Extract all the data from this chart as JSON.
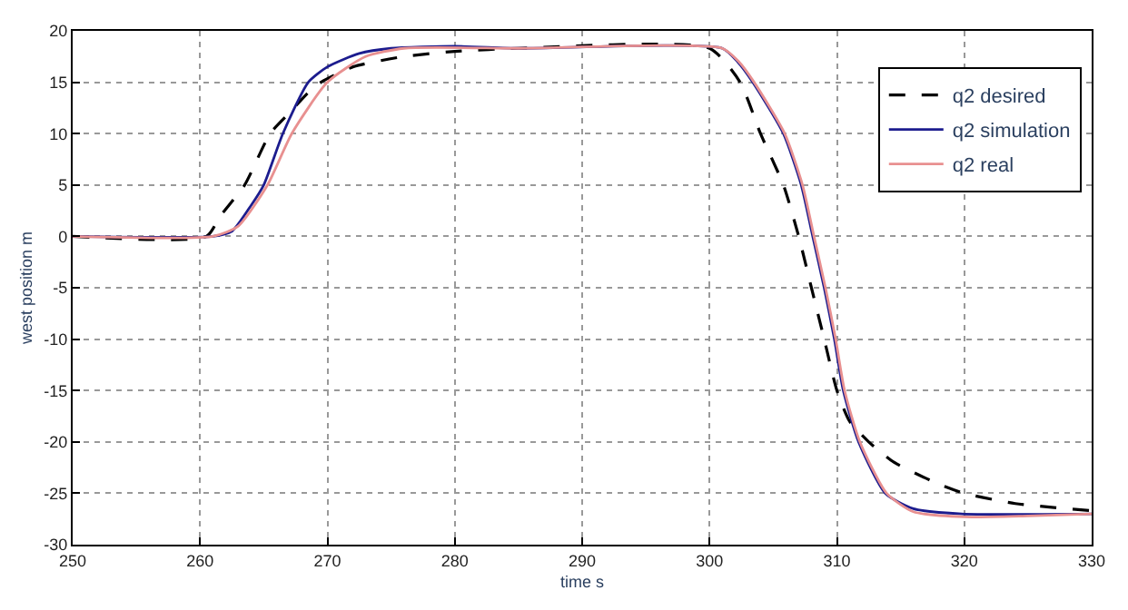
{
  "chart_data": {
    "type": "line",
    "xlabel": "time s",
    "ylabel": "west position m",
    "xlim": [
      250,
      330
    ],
    "ylim": [
      -30,
      20
    ],
    "xticks": [
      250,
      260,
      270,
      280,
      290,
      300,
      310,
      320,
      330
    ],
    "yticks": [
      -30,
      -25,
      -20,
      -15,
      -10,
      -5,
      0,
      5,
      10,
      15,
      20
    ],
    "grid": true,
    "legend": "top right",
    "marker": "none",
    "series": [
      {
        "name": "q2 desired",
        "color": "#000000",
        "line_style": "dashed",
        "x": [
          250,
          260.5,
          261.6,
          263.5,
          265.5,
          267,
          268.5,
          269.5,
          272,
          276,
          280,
          285,
          300,
          302.4,
          304,
          305.8,
          307,
          308,
          309,
          310,
          311,
          312.5,
          314.5,
          317.8,
          320,
          324,
          330
        ],
        "values": [
          0,
          0,
          2,
          5,
          10,
          12,
          14,
          15,
          16.5,
          17.5,
          18,
          18.3,
          18.3,
          15,
          10,
          5,
          0,
          -5,
          -10,
          -15,
          -18,
          -20,
          -22,
          -24,
          -25,
          -26,
          -26.7
        ]
      },
      {
        "name": "q2 simulation",
        "color": "#1c1c8e",
        "line_style": "solid",
        "x": [
          250,
          261,
          262.5,
          264,
          265,
          266.5,
          268.5,
          270,
          272.5,
          275,
          280,
          285,
          301,
          302.2,
          303.4,
          305.8,
          307.2,
          308.1,
          309,
          309.8,
          310.5,
          311.7,
          313.8,
          316,
          319.8,
          330
        ],
        "values": [
          0,
          0,
          0.5,
          3,
          5,
          10,
          15,
          16.5,
          17.8,
          18.3,
          18.5,
          18.3,
          18.3,
          17,
          15,
          10,
          5,
          0,
          -5,
          -10,
          -15,
          -20,
          -25,
          -26.5,
          -27,
          -27
        ]
      },
      {
        "name": "q2 real",
        "color": "#e89090",
        "line_style": "solid",
        "x": [
          250,
          261,
          263,
          265.3,
          267.2,
          270,
          273,
          276,
          285,
          301,
          302.3,
          303.5,
          305.9,
          307.3,
          308.2,
          309.1,
          309.9,
          310.6,
          311.8,
          313.9,
          316,
          320,
          325,
          330
        ],
        "values": [
          0,
          0,
          1,
          5,
          10,
          15,
          17.5,
          18.3,
          18.3,
          18.3,
          17,
          15,
          10,
          5,
          0,
          -5,
          -10,
          -15,
          -20,
          -25,
          -26.8,
          -27.3,
          -27.2,
          -27
        ]
      }
    ]
  }
}
